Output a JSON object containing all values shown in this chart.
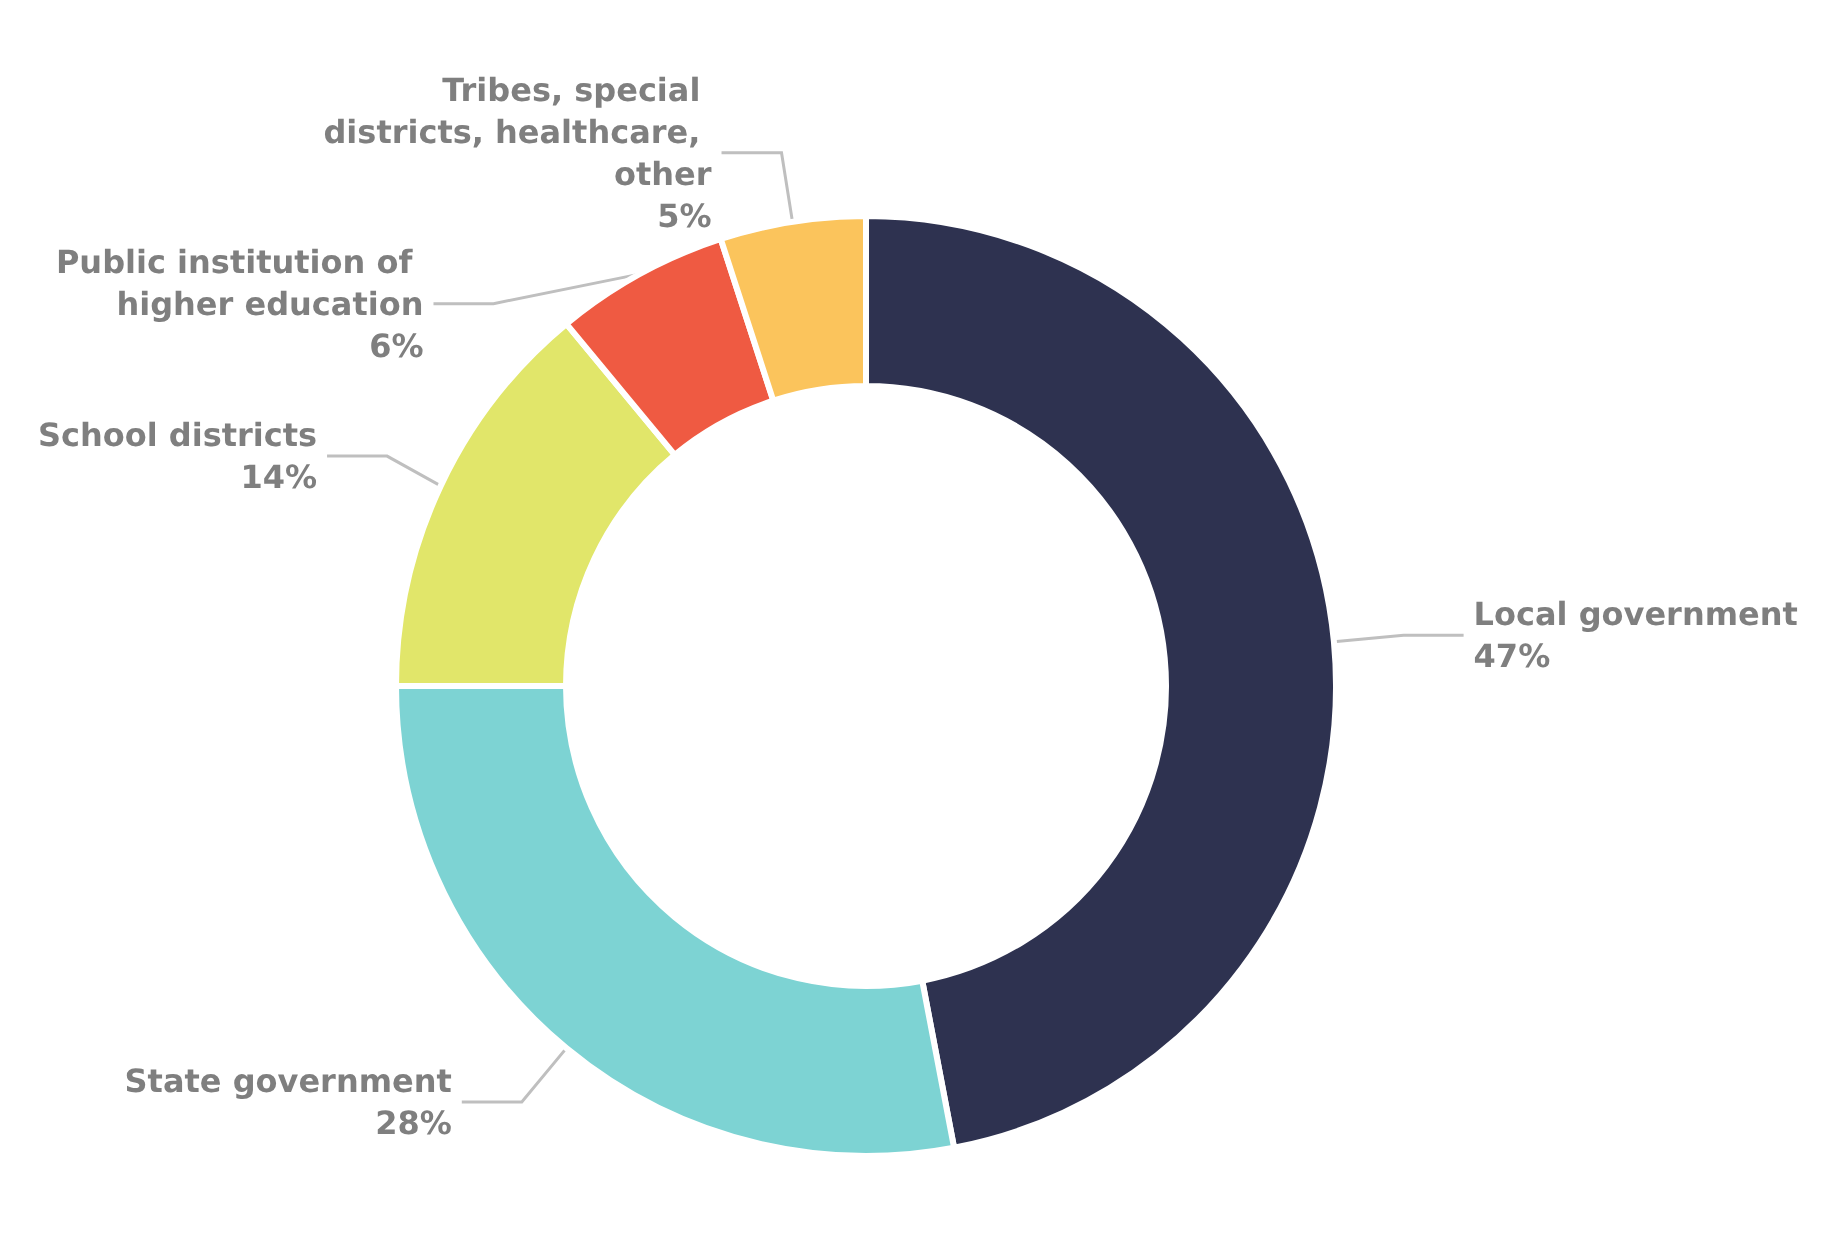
{
  "chart_data": {
    "type": "donut",
    "categories": [
      "Local government",
      "State government",
      "School districts",
      "Public institution of higher education",
      "Tribes, special districts, healthcare, other"
    ],
    "values": [
      47,
      28,
      14,
      6,
      5
    ],
    "colors": [
      "#2e3250",
      "#7dd3d3",
      "#e1e66a",
      "#ef5a42",
      "#fbc45c"
    ],
    "value_labels": [
      "47%",
      "28%",
      "14%",
      "6%",
      "5%"
    ],
    "legend": false
  }
}
